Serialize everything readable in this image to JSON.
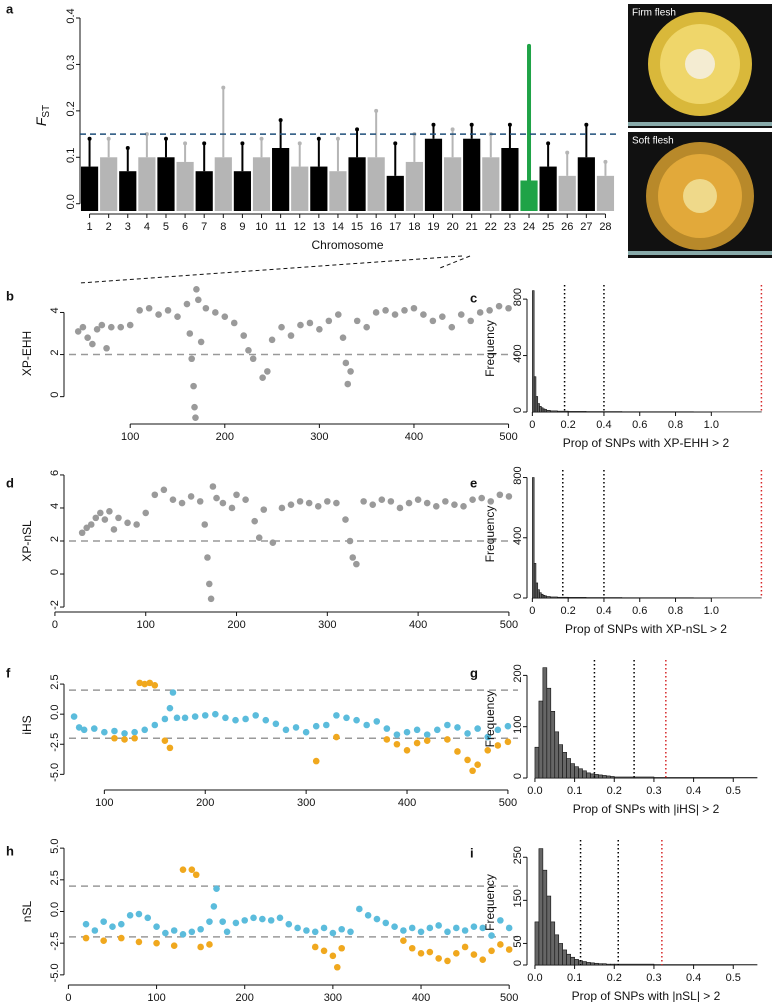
{
  "photos": [
    {
      "label": "Firm flesh"
    },
    {
      "label": "Soft flesh"
    }
  ],
  "chart_data": [
    {
      "type": "manhattan",
      "panel": "a",
      "x_label": "Chromosome",
      "y_label": "F",
      "y_label_sub": "ST",
      "categories": [
        "1",
        "2",
        "3",
        "4",
        "5",
        "6",
        "7",
        "8",
        "9",
        "10",
        "11",
        "12",
        "13",
        "14",
        "15",
        "16",
        "17",
        "18",
        "19",
        "20",
        "21",
        "22",
        "23",
        "24",
        "25",
        "26",
        "27",
        "28"
      ],
      "bulk": [
        0.08,
        0.1,
        0.07,
        0.1,
        0.1,
        0.09,
        0.07,
        0.1,
        0.07,
        0.1,
        0.12,
        0.08,
        0.08,
        0.07,
        0.1,
        0.1,
        0.06,
        0.09,
        0.14,
        0.1,
        0.14,
        0.1,
        0.12,
        0.05,
        0.08,
        0.06,
        0.1,
        0.06
      ],
      "peak": [
        0.14,
        0.14,
        0.12,
        0.15,
        0.14,
        0.13,
        0.13,
        0.25,
        0.13,
        0.14,
        0.18,
        0.13,
        0.14,
        0.14,
        0.16,
        0.2,
        0.13,
        0.15,
        0.17,
        0.16,
        0.17,
        0.15,
        0.17,
        0.34,
        0.13,
        0.11,
        0.17,
        0.09
      ],
      "colors": [
        "#000000",
        "#b5b5b5"
      ],
      "highlight": "24",
      "highlight_color": "#1fa347",
      "threshold": 0.15,
      "threshold_color": "#1f4e79",
      "ylim": [
        -0.02,
        0.4
      ],
      "yticks": [
        {
          "value": 0,
          "label": "0.0"
        },
        0.1,
        0.2,
        0.3,
        0.4
      ]
    },
    {
      "type": "scatter",
      "panel": "b",
      "y_label": "XP-EHH",
      "xlim": [
        30,
        510
      ],
      "ylim": [
        -1.3,
        5.4
      ],
      "xticks": [
        100,
        200,
        300,
        400,
        500
      ],
      "yticks": [
        0,
        2,
        4
      ],
      "hlines": [
        2
      ],
      "series": [
        {
          "color": "#9a9a9a",
          "x": [
            45,
            50,
            55,
            60,
            65,
            70,
            75,
            80,
            90,
            100,
            110,
            120,
            130,
            140,
            150,
            160,
            163,
            165,
            167,
            168,
            169,
            170,
            172,
            175,
            180,
            190,
            200,
            210,
            220,
            225,
            230,
            240,
            245,
            250,
            260,
            270,
            280,
            290,
            300,
            310,
            320,
            325,
            328,
            330,
            333,
            340,
            350,
            360,
            370,
            380,
            390,
            400,
            410,
            420,
            430,
            440,
            450,
            460,
            470,
            480,
            490,
            500
          ],
          "values": [
            3.1,
            3.3,
            2.8,
            2.5,
            3.2,
            3.4,
            2.3,
            3.3,
            3.3,
            3.4,
            4.1,
            4.2,
            3.9,
            4.1,
            3.8,
            4.4,
            3.0,
            1.8,
            0.5,
            -0.5,
            -1.0,
            5.1,
            4.6,
            2.6,
            4.2,
            4.0,
            3.8,
            3.5,
            2.9,
            2.2,
            1.8,
            0.9,
            1.2,
            2.7,
            3.3,
            2.9,
            3.4,
            3.5,
            3.2,
            3.6,
            3.9,
            2.8,
            1.6,
            0.6,
            1.2,
            3.6,
            3.3,
            4.0,
            4.1,
            3.9,
            4.1,
            4.2,
            3.9,
            3.6,
            3.8,
            3.3,
            3.9,
            3.6,
            4.0,
            4.1,
            4.3,
            4.2
          ]
        }
      ]
    },
    {
      "type": "histogram",
      "panel": "c",
      "x_label": "Prop of SNPs with XP-EHH > 2",
      "y_label": "Frequency",
      "xlim": [
        -0.03,
        1.3
      ],
      "ylim": [
        0,
        900
      ],
      "xticks": [
        0,
        0.2,
        0.4,
        0.6,
        0.8,
        {
          "value": 1,
          "label": "1.0"
        }
      ],
      "yticks": [
        0,
        400,
        800
      ],
      "bins": [
        0,
        0.01,
        0.02,
        0.03,
        0.04,
        0.05,
        0.06,
        0.07,
        0.08,
        0.1,
        0.14,
        0.2,
        0.3,
        0.5,
        0.9,
        1.28
      ],
      "counts": [
        860,
        250,
        110,
        60,
        40,
        30,
        22,
        18,
        12,
        8,
        6,
        4,
        3,
        2,
        1
      ],
      "vlines": [
        {
          "value": 0.18,
          "color": "#000000"
        },
        {
          "value": 0.4,
          "color": "#000000"
        },
        {
          "value": 1.28,
          "color": "#d62728"
        }
      ]
    },
    {
      "type": "scatter",
      "panel": "d",
      "y_label": "XP-nSL",
      "xlim": [
        10,
        510
      ],
      "ylim": [
        -2.3,
        6.3
      ],
      "xticks": [
        0,
        100,
        200,
        300,
        400,
        500
      ],
      "yticks": [
        -2,
        0,
        2,
        4,
        6
      ],
      "hlines": [
        2
      ],
      "series": [
        {
          "color": "#9a9a9a",
          "x": [
            30,
            35,
            40,
            45,
            50,
            55,
            60,
            65,
            70,
            80,
            90,
            100,
            110,
            120,
            130,
            140,
            150,
            160,
            165,
            168,
            170,
            172,
            174,
            178,
            185,
            195,
            200,
            210,
            220,
            225,
            230,
            240,
            250,
            260,
            270,
            280,
            290,
            300,
            310,
            320,
            325,
            328,
            332,
            340,
            350,
            360,
            370,
            380,
            390,
            400,
            410,
            420,
            430,
            440,
            450,
            460,
            470,
            480,
            490,
            500
          ],
          "values": [
            2.5,
            2.8,
            3.0,
            3.4,
            3.7,
            3.3,
            3.8,
            2.7,
            3.4,
            3.1,
            3.0,
            3.7,
            4.8,
            5.1,
            4.5,
            4.3,
            4.7,
            4.4,
            3.0,
            1.0,
            -0.6,
            -1.5,
            5.3,
            4.6,
            4.3,
            4.0,
            4.8,
            4.5,
            3.2,
            2.2,
            3.9,
            1.9,
            4.0,
            4.2,
            4.4,
            4.3,
            4.1,
            4.4,
            4.3,
            3.3,
            2.0,
            1.0,
            0.6,
            4.4,
            4.2,
            4.5,
            4.4,
            4.0,
            4.3,
            4.5,
            4.3,
            4.1,
            4.4,
            4.2,
            4.1,
            4.5,
            4.6,
            4.4,
            4.8,
            4.7
          ]
        }
      ]
    },
    {
      "type": "histogram",
      "panel": "e",
      "x_label": "Prop of SNPs with XP-nSL > 2",
      "y_label": "Frequency",
      "xlim": [
        -0.03,
        1.3
      ],
      "ylim": [
        0,
        850
      ],
      "xticks": [
        0,
        0.2,
        0.4,
        0.6,
        0.8,
        {
          "value": 1,
          "label": "1.0"
        }
      ],
      "yticks": [
        0,
        400,
        800
      ],
      "bins": [
        0,
        0.01,
        0.02,
        0.03,
        0.04,
        0.05,
        0.06,
        0.07,
        0.08,
        0.1,
        0.14,
        0.2,
        0.3,
        0.5,
        0.9,
        1.28
      ],
      "counts": [
        800,
        230,
        100,
        55,
        35,
        25,
        18,
        14,
        10,
        7,
        5,
        4,
        3,
        2,
        1
      ],
      "vlines": [
        {
          "value": 0.17,
          "color": "#000000"
        },
        {
          "value": 0.4,
          "color": "#000000"
        },
        {
          "value": 1.28,
          "color": "#d62728"
        }
      ]
    },
    {
      "type": "scatter",
      "panel": "f",
      "y_label": "iHS",
      "xlim": [
        60,
        510
      ],
      "ylim": [
        -6.3,
        4.5
      ],
      "xticks": [
        100,
        200,
        300,
        400,
        500
      ],
      "yticks": [
        {
          "value": -5,
          "label": "-5.0"
        },
        -2.5,
        {
          "value": 0,
          "label": "0.0"
        },
        2.5
      ],
      "hlines": [
        2,
        -2
      ],
      "series": [
        {
          "color": "#5bbcdc",
          "x": [
            70,
            75,
            80,
            90,
            100,
            110,
            120,
            130,
            140,
            150,
            160,
            165,
            168,
            172,
            180,
            190,
            200,
            210,
            220,
            230,
            240,
            250,
            260,
            270,
            280,
            290,
            300,
            310,
            320,
            330,
            340,
            350,
            360,
            370,
            380,
            390,
            400,
            410,
            420,
            430,
            440,
            450,
            460,
            470,
            480,
            490,
            500
          ],
          "values": [
            -0.2,
            -1.1,
            -1.3,
            -1.2,
            -1.5,
            -1.4,
            -1.6,
            -1.5,
            -1.3,
            -0.9,
            -0.4,
            0.5,
            1.8,
            -0.3,
            -0.3,
            -0.2,
            -0.1,
            0.0,
            -0.3,
            -0.5,
            -0.4,
            -0.1,
            -0.5,
            -0.8,
            -1.3,
            -1.1,
            -1.5,
            -1.0,
            -0.9,
            -0.1,
            -0.3,
            -0.5,
            -0.9,
            -0.6,
            -1.2,
            -1.7,
            -1.5,
            -1.3,
            -1.7,
            -1.3,
            -0.9,
            -1.1,
            -1.6,
            -1.2,
            -1.9,
            -1.3,
            -1.0
          ]
        },
        {
          "color": "#f0a81e",
          "x": [
            110,
            120,
            130,
            135,
            140,
            145,
            150,
            160,
            165,
            310,
            330,
            380,
            390,
            400,
            410,
            420,
            440,
            450,
            460,
            465,
            470,
            480,
            490,
            500
          ],
          "values": [
            -2.0,
            -2.1,
            -2.0,
            2.6,
            2.5,
            2.6,
            2.4,
            -2.2,
            -2.8,
            -3.9,
            -1.9,
            -2.1,
            -2.5,
            -3.0,
            -2.4,
            -2.2,
            -2.1,
            -3.1,
            -3.8,
            -4.7,
            -4.2,
            -3.0,
            -2.6,
            -2.3
          ]
        }
      ]
    },
    {
      "type": "histogram",
      "panel": "g",
      "x_label": "Prop of SNPs with |iHS| > 2",
      "y_label": "Frequency",
      "xlim": [
        -0.02,
        0.58
      ],
      "ylim": [
        0,
        230
      ],
      "xticks": [
        {
          "value": 0,
          "label": "0.0"
        },
        0.1,
        0.2,
        0.3,
        0.4,
        0.5
      ],
      "yticks": [
        0,
        100,
        200
      ],
      "bins": [
        0,
        0.01,
        0.02,
        0.03,
        0.04,
        0.05,
        0.06,
        0.07,
        0.08,
        0.09,
        0.1,
        0.11,
        0.12,
        0.13,
        0.14,
        0.15,
        0.16,
        0.17,
        0.18,
        0.19,
        0.2,
        0.3,
        0.4,
        0.56
      ],
      "counts": [
        60,
        150,
        215,
        175,
        130,
        90,
        65,
        50,
        38,
        28,
        22,
        18,
        14,
        10,
        8,
        7,
        6,
        5,
        4,
        3,
        2,
        1,
        1
      ],
      "vlines": [
        {
          "value": 0.15,
          "color": "#000000"
        },
        {
          "value": 0.25,
          "color": "#000000"
        },
        {
          "value": 0.33,
          "color": "#d62728"
        }
      ]
    },
    {
      "type": "scatter",
      "panel": "h",
      "y_label": "nSL",
      "xlim": [
        -5,
        510
      ],
      "ylim": [
        -5.8,
        5.8
      ],
      "xticks": [
        0,
        100,
        200,
        300,
        400,
        500
      ],
      "yticks": [
        {
          "value": -5,
          "label": "-5.0"
        },
        -2.5,
        {
          "value": 0,
          "label": "0.0"
        },
        2.5,
        {
          "value": 5,
          "label": "5.0"
        }
      ],
      "hlines": [
        2,
        -2
      ],
      "series": [
        {
          "color": "#5bbcdc",
          "x": [
            20,
            30,
            40,
            50,
            60,
            70,
            80,
            90,
            100,
            110,
            120,
            130,
            140,
            150,
            160,
            165,
            168,
            175,
            180,
            190,
            200,
            210,
            220,
            230,
            240,
            250,
            260,
            270,
            280,
            290,
            300,
            310,
            320,
            330,
            340,
            350,
            360,
            370,
            380,
            390,
            400,
            410,
            420,
            430,
            440,
            450,
            460,
            470,
            480,
            490,
            500
          ],
          "values": [
            -1.0,
            -1.5,
            -0.8,
            -1.2,
            -1.0,
            -0.3,
            -0.2,
            -0.5,
            -1.2,
            -1.7,
            -1.5,
            -1.8,
            -1.6,
            -1.4,
            -0.8,
            0.4,
            1.8,
            -0.8,
            -1.6,
            -0.9,
            -0.7,
            -0.5,
            -0.6,
            -0.7,
            -0.5,
            -1.0,
            -1.3,
            -1.5,
            -1.6,
            -1.3,
            -1.7,
            -1.4,
            -1.6,
            0.2,
            -0.3,
            -0.6,
            -0.9,
            -1.2,
            -1.5,
            -1.3,
            -1.6,
            -1.3,
            -1.1,
            -1.6,
            -1.3,
            -1.5,
            -1.2,
            -1.3,
            -1.9,
            -0.7,
            -1.3
          ]
        },
        {
          "color": "#f0a81e",
          "x": [
            20,
            40,
            60,
            80,
            100,
            120,
            130,
            140,
            145,
            150,
            160,
            280,
            290,
            300,
            305,
            310,
            380,
            390,
            400,
            410,
            420,
            430,
            440,
            450,
            460,
            470,
            480,
            490,
            500
          ],
          "values": [
            -2.1,
            -2.3,
            -2.1,
            -2.4,
            -2.5,
            -2.7,
            3.3,
            3.3,
            2.9,
            -2.8,
            -2.6,
            -2.8,
            -3.1,
            -3.5,
            -4.4,
            -2.9,
            -2.3,
            -2.9,
            -3.3,
            -3.2,
            -3.7,
            -3.9,
            -3.3,
            -2.8,
            -3.4,
            -3.8,
            -3.1,
            -2.6,
            -3.0
          ]
        }
      ]
    },
    {
      "type": "histogram",
      "panel": "i",
      "x_label": "Prop of SNPs with |nSL| > 2",
      "y_label": "Frequency",
      "xlim": [
        -0.02,
        0.58
      ],
      "ylim": [
        0,
        290
      ],
      "xticks": [
        {
          "value": 0,
          "label": "0.0"
        },
        0.1,
        0.2,
        0.3,
        0.4,
        0.5
      ],
      "yticks": [
        0,
        50,
        150,
        250
      ],
      "bins": [
        0,
        0.01,
        0.02,
        0.03,
        0.04,
        0.05,
        0.06,
        0.07,
        0.08,
        0.09,
        0.1,
        0.11,
        0.12,
        0.13,
        0.14,
        0.15,
        0.16,
        0.17,
        0.18,
        0.19,
        0.2,
        0.3,
        0.4,
        0.56
      ],
      "counts": [
        100,
        270,
        220,
        160,
        100,
        70,
        50,
        35,
        25,
        18,
        13,
        10,
        8,
        6,
        5,
        4,
        3,
        3,
        2,
        2,
        2,
        1,
        1
      ],
      "vlines": [
        {
          "value": 0.115,
          "color": "#000000"
        },
        {
          "value": 0.21,
          "color": "#000000"
        },
        {
          "value": 0.32,
          "color": "#d62728"
        }
      ]
    }
  ]
}
